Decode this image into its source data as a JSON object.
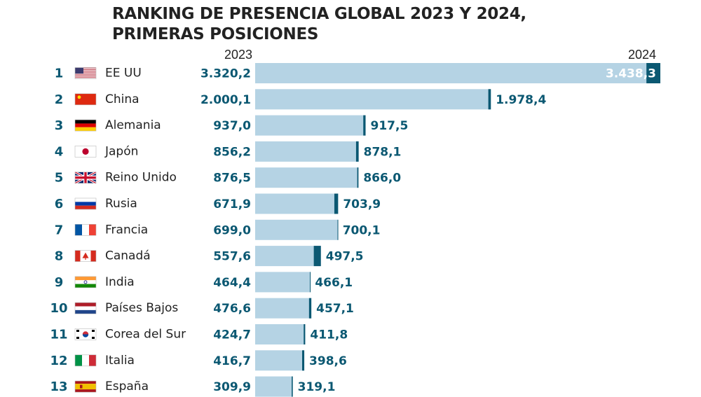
{
  "chart_data": {
    "type": "bar",
    "title_lines": [
      "RANKING DE PRESENCIA GLOBAL 2023 Y 2024,",
      "PRIMERAS POSICIONES"
    ],
    "series_labels": [
      "2023",
      "2024"
    ],
    "rows": [
      {
        "rank": "1",
        "country": "EE UU",
        "flag": "us",
        "v2023": 3320.2,
        "v2024": 3438.3,
        "label2023": "3.320,2",
        "label2024": "3.438,3"
      },
      {
        "rank": "2",
        "country": "China",
        "flag": "cn",
        "v2023": 2000.1,
        "v2024": 1978.4,
        "label2023": "2.000,1",
        "label2024": "1.978,4"
      },
      {
        "rank": "3",
        "country": "Alemania",
        "flag": "de",
        "v2023": 937.0,
        "v2024": 917.5,
        "label2023": "937,0",
        "label2024": "917,5"
      },
      {
        "rank": "4",
        "country": "Japón",
        "flag": "jp",
        "v2023": 856.2,
        "v2024": 878.1,
        "label2023": "856,2",
        "label2024": "878,1"
      },
      {
        "rank": "5",
        "country": "Reino Unido",
        "flag": "gb",
        "v2023": 876.5,
        "v2024": 866.0,
        "label2023": "876,5",
        "label2024": "866,0"
      },
      {
        "rank": "6",
        "country": "Rusia",
        "flag": "ru",
        "v2023": 671.9,
        "v2024": 703.9,
        "label2023": "671,9",
        "label2024": "703,9"
      },
      {
        "rank": "7",
        "country": "Francia",
        "flag": "fr",
        "v2023": 699.0,
        "v2024": 700.1,
        "label2023": "699,0",
        "label2024": "700,1"
      },
      {
        "rank": "8",
        "country": "Canadá",
        "flag": "ca",
        "v2023": 557.6,
        "v2024": 497.5,
        "label2023": "557,6",
        "label2024": "497,5"
      },
      {
        "rank": "9",
        "country": "India",
        "flag": "in",
        "v2023": 464.4,
        "v2024": 466.1,
        "label2023": "464,4",
        "label2024": "466,1"
      },
      {
        "rank": "10",
        "country": "Países Bajos",
        "flag": "nl",
        "v2023": 476.6,
        "v2024": 457.1,
        "label2023": "476,6",
        "label2024": "457,1"
      },
      {
        "rank": "11",
        "country": "Corea del Sur",
        "flag": "kr",
        "v2023": 424.7,
        "v2024": 411.8,
        "label2023": "424,7",
        "label2024": "411,8"
      },
      {
        "rank": "12",
        "country": "Italia",
        "flag": "it",
        "v2023": 416.7,
        "v2024": 398.6,
        "label2023": "416,7",
        "label2024": "398,6"
      },
      {
        "rank": "13",
        "country": "España",
        "flag": "es",
        "v2023": 309.9,
        "v2024": 319.1,
        "label2023": "309,9",
        "label2024": "319,1"
      }
    ],
    "colors": {
      "bar2023": "#b5d3e4",
      "bar2024": "#0b5872",
      "labels": "#0b5872",
      "text": "#222222"
    }
  }
}
